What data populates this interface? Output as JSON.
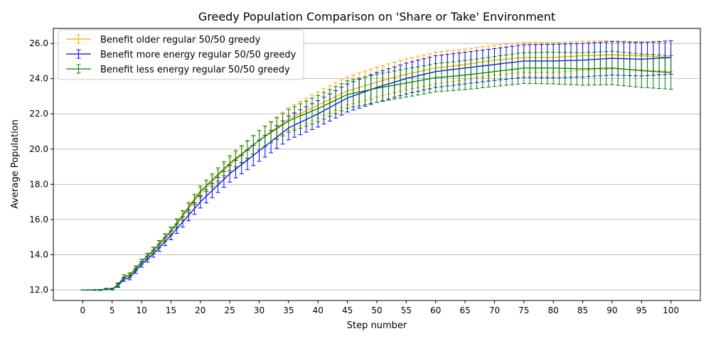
{
  "chart_data": {
    "type": "line",
    "title": "Greedy Population Comparison on 'Share or Take' Environment",
    "xlabel": "Step number",
    "ylabel": "Average Population",
    "xlim": [
      -5,
      105
    ],
    "ylim": [
      11.4,
      26.85
    ],
    "xticks": [
      0,
      5,
      10,
      15,
      20,
      25,
      30,
      35,
      40,
      45,
      50,
      55,
      60,
      65,
      70,
      75,
      80,
      85,
      90,
      95,
      100
    ],
    "yticks": [
      12.0,
      14.0,
      16.0,
      18.0,
      20.0,
      22.0,
      24.0,
      26.0
    ],
    "grid": "horizontal",
    "legend_position": "top-left",
    "error_bars": true,
    "series": [
      {
        "name": "Benefit older regular 50/50 greedy",
        "color": "#ffa500",
        "anchors_x": [
          0,
          3,
          4,
          5,
          6,
          7,
          8,
          10,
          12,
          15,
          20,
          25,
          30,
          35,
          40,
          45,
          50,
          55,
          60,
          65,
          70,
          75,
          80,
          85,
          90,
          95,
          100
        ],
        "anchors_y": [
          12.0,
          12.0,
          12.05,
          12.05,
          12.3,
          12.75,
          12.8,
          13.6,
          14.2,
          15.3,
          17.5,
          19.1,
          20.5,
          21.7,
          22.5,
          23.3,
          23.8,
          24.25,
          24.6,
          24.8,
          25.05,
          25.2,
          25.2,
          25.3,
          25.35,
          25.3,
          25.2
        ],
        "error_anchors_x": [
          0,
          5,
          6,
          10,
          20,
          30,
          40,
          50,
          60,
          70,
          80,
          90,
          100
        ],
        "error_anchors": [
          0.0,
          0.03,
          0.1,
          0.15,
          0.3,
          0.55,
          0.75,
          0.85,
          0.9,
          0.85,
          0.85,
          0.8,
          0.8
        ]
      },
      {
        "name": "Benefit more energy regular 50/50 greedy",
        "color": "#0000ff",
        "anchors_x": [
          0,
          3,
          4,
          5,
          6,
          7,
          8,
          10,
          12,
          15,
          20,
          25,
          30,
          35,
          40,
          45,
          50,
          55,
          60,
          65,
          70,
          75,
          80,
          85,
          90,
          95,
          100
        ],
        "anchors_y": [
          12.0,
          12.0,
          12.05,
          12.05,
          12.25,
          12.6,
          12.7,
          13.45,
          14.05,
          15.1,
          17.0,
          18.6,
          19.9,
          21.2,
          22.0,
          22.9,
          23.5,
          24.0,
          24.4,
          24.6,
          24.8,
          25.0,
          25.0,
          25.05,
          25.15,
          25.1,
          25.2
        ],
        "error_anchors_x": [
          0,
          5,
          6,
          10,
          20,
          30,
          40,
          50,
          60,
          70,
          80,
          90,
          100
        ],
        "error_anchors": [
          0.0,
          0.05,
          0.1,
          0.15,
          0.35,
          0.6,
          0.75,
          0.85,
          0.9,
          0.9,
          0.95,
          0.95,
          0.95
        ]
      },
      {
        "name": "Benefit less energy regular 50/50 greedy",
        "color": "#008000",
        "anchors_x": [
          0,
          3,
          4,
          5,
          6,
          7,
          8,
          10,
          12,
          15,
          20,
          25,
          30,
          35,
          40,
          45,
          50,
          55,
          60,
          65,
          70,
          75,
          80,
          85,
          90,
          95,
          100
        ],
        "anchors_y": [
          12.0,
          12.0,
          12.05,
          12.05,
          12.3,
          12.75,
          12.85,
          13.6,
          14.25,
          15.35,
          17.6,
          19.2,
          20.5,
          21.6,
          22.3,
          23.1,
          23.45,
          23.75,
          24.05,
          24.2,
          24.4,
          24.6,
          24.6,
          24.55,
          24.6,
          24.45,
          24.35
        ],
        "error_anchors_x": [
          0,
          5,
          6,
          10,
          20,
          30,
          40,
          50,
          60,
          70,
          80,
          90,
          100
        ],
        "error_anchors": [
          0.0,
          0.03,
          0.1,
          0.15,
          0.3,
          0.55,
          0.75,
          0.8,
          0.8,
          0.85,
          0.9,
          0.95,
          0.95
        ]
      }
    ]
  }
}
